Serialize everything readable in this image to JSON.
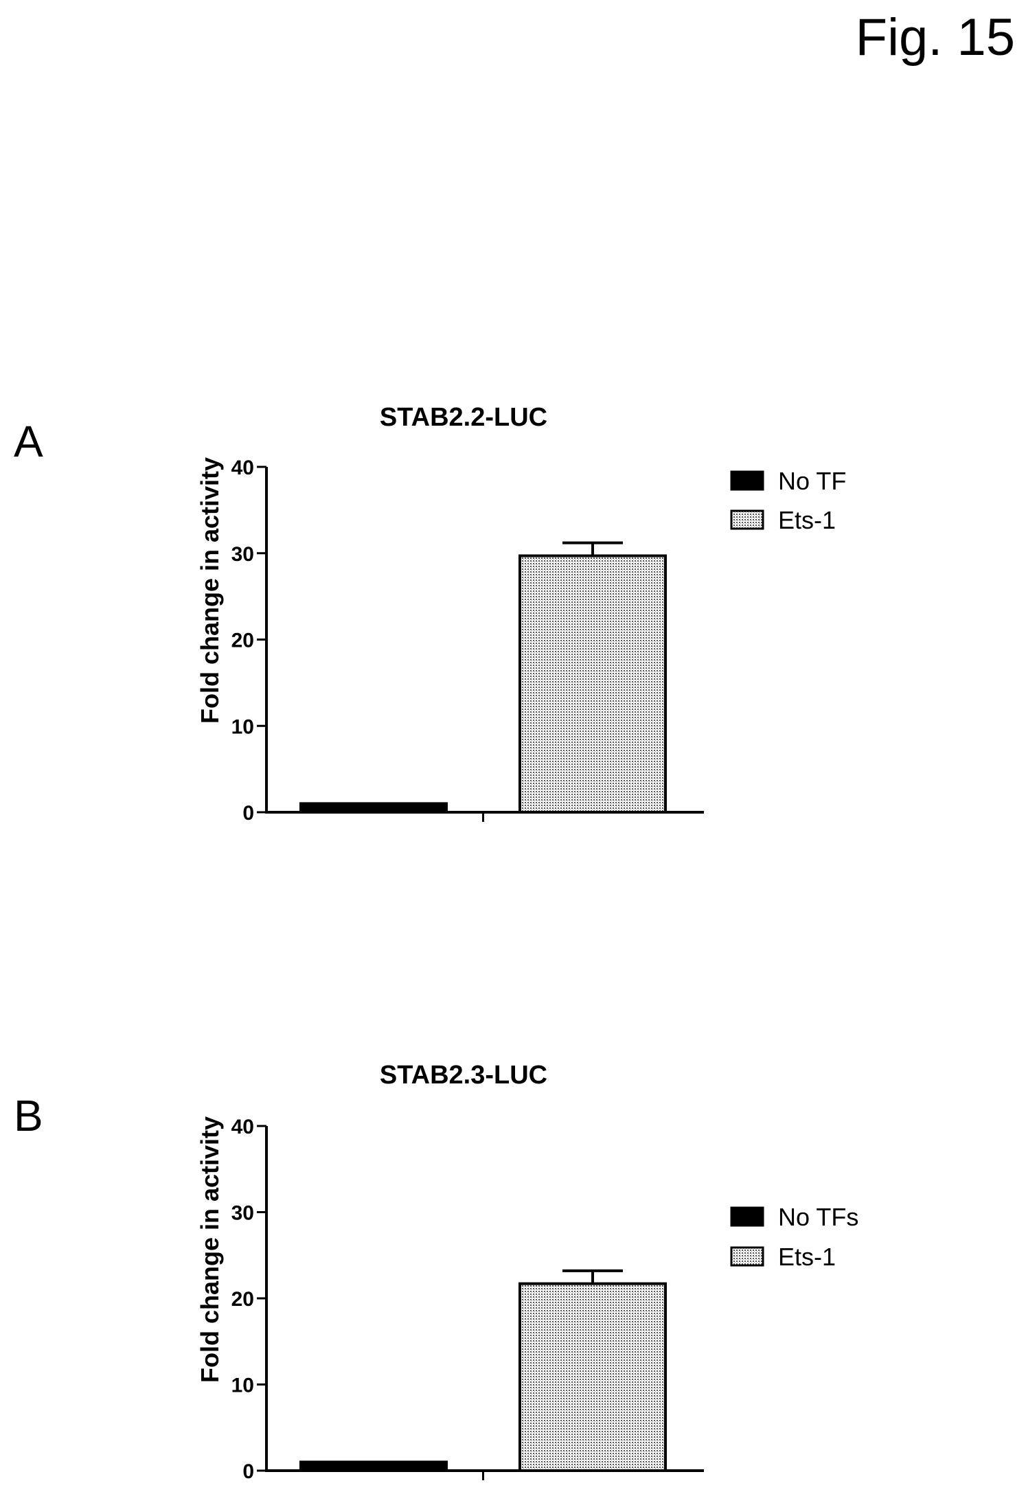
{
  "figure_label": "Fig. 15",
  "colors": {
    "ink": "#000000",
    "stipple": "#c8c8c8",
    "background": "#ffffff"
  },
  "chart_data": [
    {
      "panel": "A",
      "type": "bar",
      "title": "STAB2.2-LUC",
      "ylabel": "Fold change in activity",
      "xlabel": "",
      "ylim": [
        0,
        40
      ],
      "yticks": [
        "0",
        "10",
        "20",
        "30",
        "40"
      ],
      "legend_position": "right",
      "series": [
        {
          "name": "No TF",
          "value": 1,
          "error": 0,
          "fill": "solid"
        },
        {
          "name": "Ets-1",
          "value": 29.7,
          "error": 1.5,
          "fill": "stipple"
        }
      ]
    },
    {
      "panel": "B",
      "type": "bar",
      "title": "STAB2.3-LUC",
      "ylabel": "Fold change in activity",
      "xlabel": "",
      "ylim": [
        0,
        40
      ],
      "yticks": [
        "0",
        "10",
        "20",
        "30",
        "40"
      ],
      "legend_position": "right",
      "series": [
        {
          "name": "No TFs",
          "value": 1,
          "error": 0,
          "fill": "solid"
        },
        {
          "name": "Ets-1",
          "value": 21.7,
          "error": 1.5,
          "fill": "stipple"
        }
      ]
    }
  ]
}
